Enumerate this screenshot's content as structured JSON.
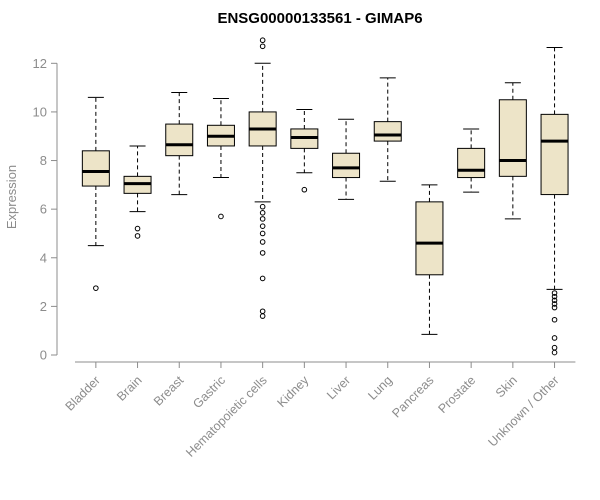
{
  "chart_data": {
    "type": "boxplot",
    "title": "ENSG00000133561 - GIMAP6",
    "ylabel": "Expression",
    "ylim": [
      0,
      13
    ],
    "yticks": [
      0,
      2,
      4,
      6,
      8,
      10,
      12
    ],
    "grid": false,
    "legend": "none",
    "box_fill": "#ede4c8",
    "axis_color": "#8c8c8c",
    "categories": [
      "Bladder",
      "Brain",
      "Breast",
      "Gastric",
      "Hematopoietic cells",
      "Kidney",
      "Liver",
      "Lung",
      "Pancreas",
      "Prostate",
      "Skin",
      "Unknown / Other"
    ],
    "series": [
      {
        "name": "Bladder",
        "low": 4.5,
        "q1": 6.95,
        "median": 7.55,
        "q3": 8.4,
        "high": 10.6,
        "outliers": [
          2.75
        ]
      },
      {
        "name": "Brain",
        "low": 5.9,
        "q1": 6.65,
        "median": 7.05,
        "q3": 7.35,
        "high": 8.6,
        "outliers": [
          5.2,
          4.9
        ]
      },
      {
        "name": "Breast",
        "low": 6.6,
        "q1": 8.2,
        "median": 8.65,
        "q3": 9.5,
        "high": 10.8,
        "outliers": []
      },
      {
        "name": "Gastric",
        "low": 7.3,
        "q1": 8.6,
        "median": 9.0,
        "q3": 9.45,
        "high": 10.55,
        "outliers": [
          5.7
        ]
      },
      {
        "name": "Hematopoietic cells",
        "low": 6.3,
        "q1": 8.6,
        "median": 9.3,
        "q3": 10.0,
        "high": 12.0,
        "outliers": [
          12.95,
          12.7,
          6.1,
          5.85,
          5.6,
          5.3,
          5.0,
          4.65,
          4.2,
          3.15,
          1.8,
          1.6
        ]
      },
      {
        "name": "Kidney",
        "low": 7.5,
        "q1": 8.5,
        "median": 8.95,
        "q3": 9.3,
        "high": 10.1,
        "outliers": [
          6.8
        ]
      },
      {
        "name": "Liver",
        "low": 6.4,
        "q1": 7.3,
        "median": 7.7,
        "q3": 8.3,
        "high": 9.7,
        "outliers": []
      },
      {
        "name": "Lung",
        "low": 7.15,
        "q1": 8.8,
        "median": 9.05,
        "q3": 9.6,
        "high": 11.4,
        "outliers": []
      },
      {
        "name": "Pancreas",
        "low": 0.85,
        "q1": 3.3,
        "median": 4.6,
        "q3": 6.3,
        "high": 7.0,
        "outliers": []
      },
      {
        "name": "Prostate",
        "low": 6.7,
        "q1": 7.3,
        "median": 7.6,
        "q3": 8.5,
        "high": 9.3,
        "outliers": []
      },
      {
        "name": "Skin",
        "low": 5.6,
        "q1": 7.35,
        "median": 8.0,
        "q3": 10.5,
        "high": 11.2,
        "outliers": []
      },
      {
        "name": "Unknown / Other",
        "low": 2.7,
        "q1": 6.6,
        "median": 8.8,
        "q3": 9.9,
        "high": 12.65,
        "outliers": [
          2.55,
          2.4,
          2.25,
          2.1,
          1.95,
          1.45,
          0.7,
          0.3,
          0.1
        ]
      }
    ]
  }
}
